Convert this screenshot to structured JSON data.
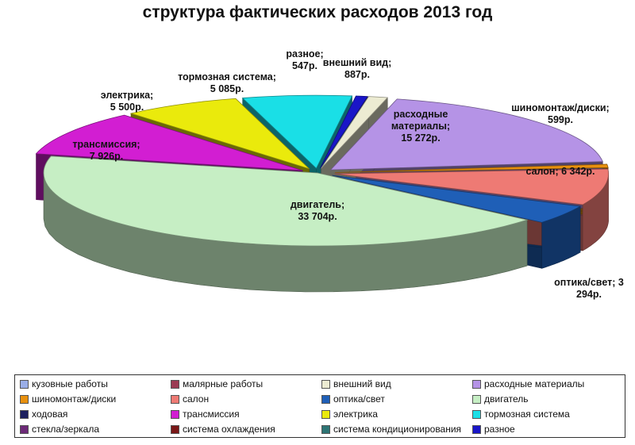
{
  "chart_data": {
    "type": "pie",
    "title": "структура фактических расходов 2013 год",
    "categories": [
      "кузовные работы",
      "малярные работы",
      "внешний вид",
      "расходные материалы",
      "шиномонтаж/диски",
      "салон",
      "оптика/свет",
      "двигатель",
      "ходовая",
      "трансмиссия",
      "электрика",
      "тормозная система",
      "стекла/зеркала",
      "система охлаждения",
      "система кондиционирования",
      "разное"
    ],
    "values": [
      0,
      0,
      887,
      15272,
      599,
      6342,
      3294,
      33704,
      0,
      7926,
      5500,
      5085,
      0,
      0,
      0,
      547
    ],
    "colors": [
      "#9aaee8",
      "#9b3b53",
      "#ecebd2",
      "#b593e6",
      "#e8900e",
      "#ee7a74",
      "#1f5fb7",
      "#c6eec4",
      "#1c1f5e",
      "#d21ed2",
      "#eaea0c",
      "#1adfe6",
      "#6d2a78",
      "#7a1818",
      "#2d7474",
      "#1a16c8"
    ],
    "data_labels": [
      "",
      "",
      "внешний вид;\n887р.",
      "расходные\nматериалы;\n15 272р.",
      "шиномонтаж/диски;\n599р.",
      "салон; 6 342р.",
      "оптика/свет; 3\n294р.",
      "двигатель;\n33 704р.",
      "",
      "трансмиссия;\n7 926р.",
      "электрика;\n5 500р.",
      "тормозная система;\n5 085р.",
      "",
      "",
      "",
      "разное;\n547р."
    ],
    "legend_placement": "bottom"
  }
}
